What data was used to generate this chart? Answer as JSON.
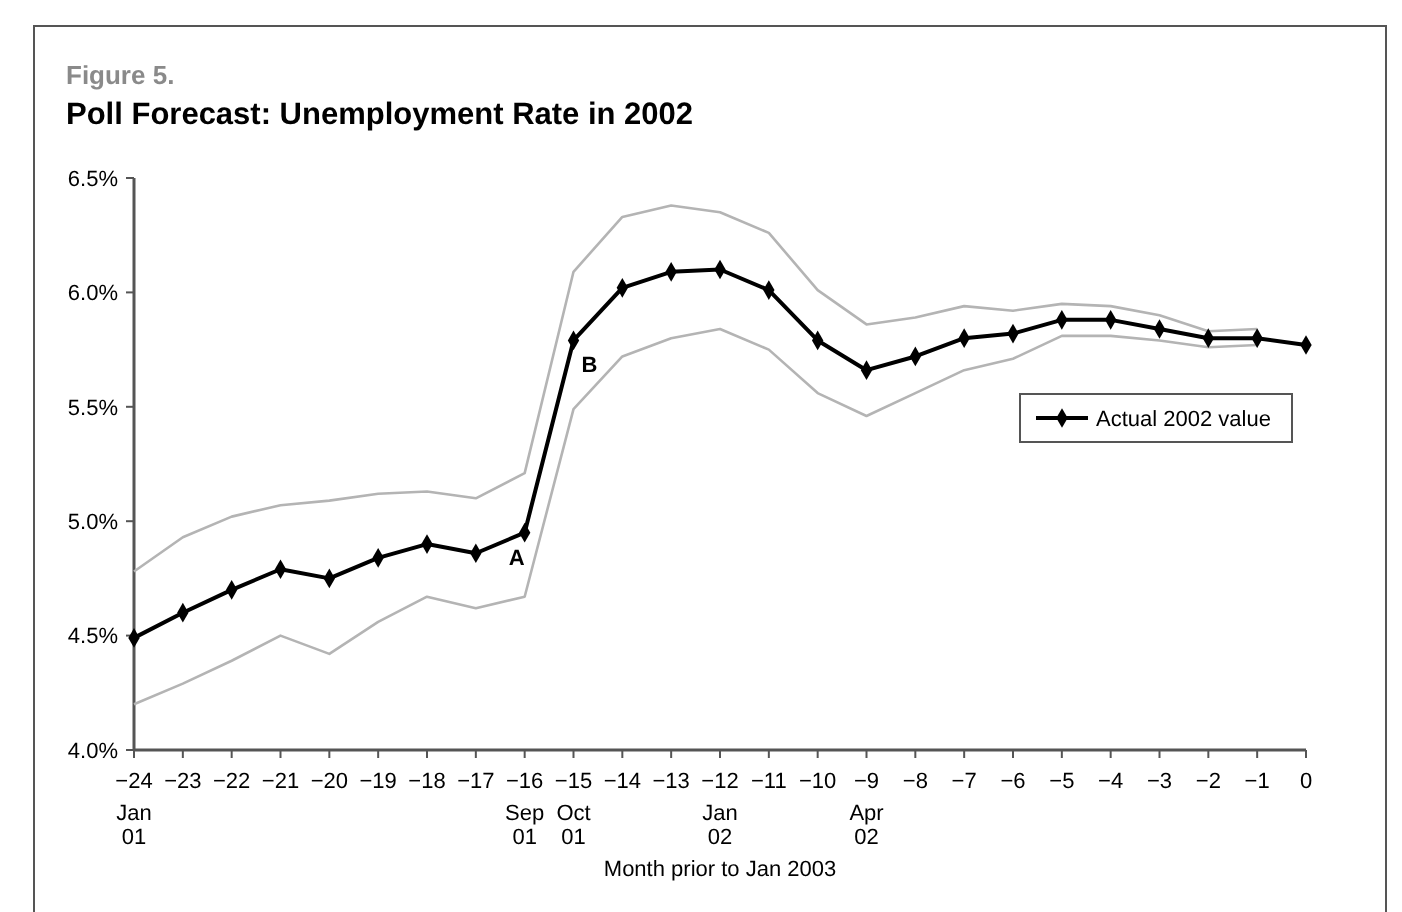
{
  "chart_data": {
    "type": "line",
    "title": "Poll Forecast: Unemployment Rate in 2002",
    "subtitle": "Figure 5.",
    "xlabel": "Month prior to Jan 2003",
    "x": [
      -24,
      -23,
      -22,
      -21,
      -20,
      -19,
      -18,
      -17,
      -16,
      -15,
      -14,
      -13,
      -12,
      -11,
      -10,
      -9,
      -8,
      -7,
      -6,
      -5,
      -4,
      -3,
      -2,
      -1,
      0
    ],
    "series": [
      {
        "color": "#b4b4b4",
        "marker": "none",
        "values": [
          4.78,
          4.93,
          5.02,
          5.07,
          5.09,
          5.12,
          5.13,
          5.1,
          5.21,
          6.09,
          6.33,
          6.38,
          6.35,
          6.26,
          6.01,
          5.86,
          5.89,
          5.94,
          5.92,
          5.95,
          5.94,
          5.9,
          5.83,
          5.84,
          null
        ]
      },
      {
        "color": "#b4b4b4",
        "marker": "none",
        "values": [
          4.2,
          4.29,
          4.39,
          4.5,
          4.42,
          4.56,
          4.67,
          4.62,
          4.67,
          5.49,
          5.72,
          5.8,
          5.84,
          5.75,
          5.56,
          5.46,
          5.56,
          5.66,
          5.71,
          5.81,
          5.81,
          5.79,
          5.76,
          5.77,
          null
        ]
      },
      {
        "name": "Actual 2002 value",
        "color": "#000000",
        "marker": "diamond",
        "values": [
          4.49,
          4.6,
          4.7,
          4.79,
          4.75,
          4.84,
          4.9,
          4.86,
          4.95,
          5.79,
          6.02,
          6.09,
          6.1,
          6.01,
          5.79,
          5.66,
          5.72,
          5.8,
          5.82,
          5.88,
          5.88,
          5.84,
          5.8,
          5.8,
          5.77
        ]
      }
    ],
    "xlim": [
      -24,
      0
    ],
    "xticks": [
      {
        "value": -24,
        "label": "−24\nJan\n01"
      },
      {
        "value": -23,
        "label": "−23"
      },
      {
        "value": -22,
        "label": "−22"
      },
      {
        "value": -21,
        "label": "−21"
      },
      {
        "value": -20,
        "label": "−20"
      },
      {
        "value": -19,
        "label": "−19"
      },
      {
        "value": -18,
        "label": "−18"
      },
      {
        "value": -17,
        "label": "−17"
      },
      {
        "value": -16,
        "label": "−16\nSep\n01"
      },
      {
        "value": -15,
        "label": "−15\nOct\n01"
      },
      {
        "value": -14,
        "label": "−14"
      },
      {
        "value": -13,
        "label": "−13"
      },
      {
        "value": -12,
        "label": "−12\nJan\n02"
      },
      {
        "value": -11,
        "label": "−11"
      },
      {
        "value": -10,
        "label": "−10"
      },
      {
        "value": -9,
        "label": "−9\nApr\n02"
      },
      {
        "value": -8,
        "label": "−8"
      },
      {
        "value": -7,
        "label": "−7"
      },
      {
        "value": -6,
        "label": "−6"
      },
      {
        "value": -5,
        "label": "−5"
      },
      {
        "value": -4,
        "label": "−4"
      },
      {
        "value": -3,
        "label": "−3"
      },
      {
        "value": -2,
        "label": "−2"
      },
      {
        "value": -1,
        "label": "−1"
      },
      0
    ],
    "ylim": [
      4.0,
      6.5
    ],
    "yticks": [
      {
        "value": 4.0,
        "label": "4.0%"
      },
      {
        "value": 4.5,
        "label": "4.5%"
      },
      {
        "value": 5.0,
        "label": "5.0%"
      },
      {
        "value": 5.5,
        "label": "5.5%"
      },
      {
        "value": 6.0,
        "label": "6.0%"
      },
      {
        "value": 6.5,
        "label": "6.5%"
      }
    ],
    "annotations": [
      {
        "text": "A",
        "x": -16,
        "y": 4.95
      },
      {
        "text": "B",
        "x": -15,
        "y": 5.79
      }
    ],
    "grid": false,
    "legend": "right",
    "line_style": "solid"
  }
}
